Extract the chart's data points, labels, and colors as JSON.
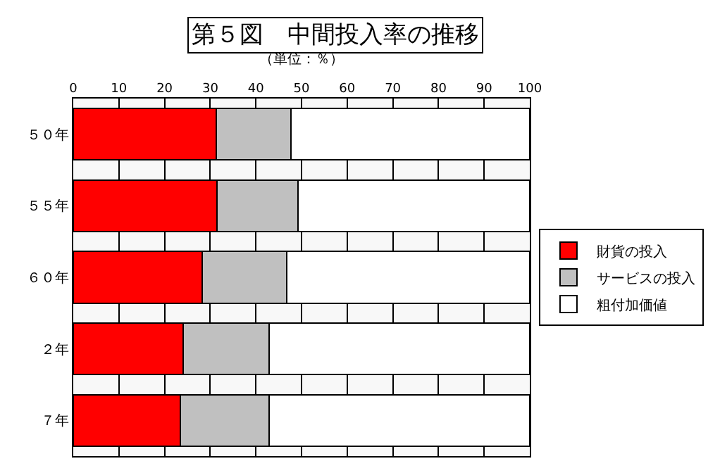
{
  "chart_data": {
    "type": "bar",
    "orientation": "horizontal",
    "stacked": true,
    "title": "第５図　中間投入率の推移",
    "subtitle": "（単位：％）",
    "categories": [
      "５０年",
      "５５年",
      "６０年",
      "２年",
      "７年"
    ],
    "series": [
      {
        "name": "財貨の投入",
        "color": "#ff0000",
        "values": [
          31.3,
          31.5,
          28.3,
          24.1,
          23.4
        ]
      },
      {
        "name": "サービスの投入",
        "color": "#c0c0c0",
        "values": [
          16.4,
          17.7,
          18.5,
          18.8,
          19.5
        ]
      },
      {
        "name": "粗付加価値",
        "color": "#ffffff",
        "values": [
          52.3,
          50.8,
          53.2,
          57.1,
          57.1
        ]
      }
    ],
    "xlim": [
      0,
      100
    ],
    "xticks": [
      0,
      10,
      20,
      30,
      40,
      50,
      60,
      70,
      80,
      90,
      100
    ],
    "grid": "x",
    "legend": "right"
  }
}
